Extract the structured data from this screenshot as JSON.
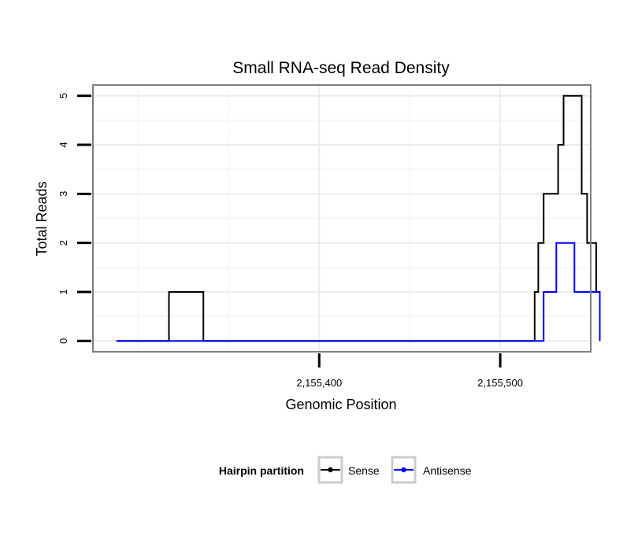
{
  "chart_data": {
    "type": "line",
    "title": "Small RNA-seq Read Density",
    "xlabel": "Genomic Position",
    "ylabel": "Total Reads",
    "xlim": [
      2155275,
      2155550
    ],
    "ylim": [
      -0.22,
      5.22
    ],
    "x_ticks": [
      2155400,
      2155500
    ],
    "x_tick_labels": [
      "2,155,400",
      "2,155,500"
    ],
    "y_ticks": [
      0,
      1,
      2,
      3,
      4,
      5
    ],
    "y_tick_labels": [
      "0",
      "1",
      "2",
      "3",
      "4",
      "5"
    ],
    "grid": true,
    "legend": {
      "title": "Hairpin partition",
      "position": "bottom"
    },
    "series": [
      {
        "name": "Sense",
        "color": "#000000",
        "step": true,
        "x": [
          2155288,
          2155317,
          2155336,
          2155513,
          2155519,
          2155521,
          2155524,
          2155532,
          2155535,
          2155537,
          2155545,
          2155548,
          2155553,
          2155555
        ],
        "y": [
          0,
          1,
          0,
          0,
          1,
          2,
          3,
          4,
          5,
          5,
          3,
          2,
          1,
          0
        ]
      },
      {
        "name": "Antisense",
        "color": "#0000ff",
        "step": true,
        "x": [
          2155288,
          2155521,
          2155524,
          2155531,
          2155541,
          2155547,
          2155555
        ],
        "y": [
          0,
          0,
          1,
          2,
          1,
          1,
          0
        ]
      }
    ]
  }
}
